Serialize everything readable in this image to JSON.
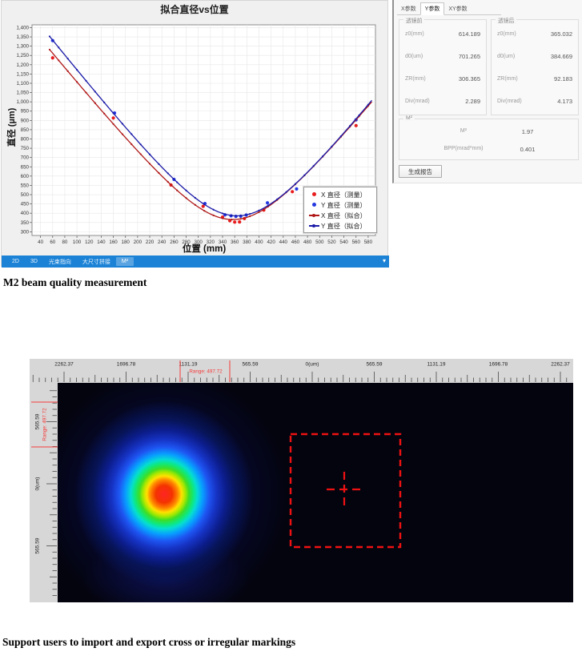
{
  "chart_window": {
    "title": "拟合直径vs位置",
    "footer_tabs": {
      "items": [
        "2D",
        "3D",
        "光束指向",
        "大尺寸拼接",
        "M²"
      ],
      "active": "M²",
      "collapse_arrow": "▾"
    }
  },
  "chart_data": {
    "type": "scatter+line",
    "title": "拟合直径vs位置",
    "xlabel": "位置 (mm)",
    "ylabel": "直径 (µm)",
    "xlim": [
      26,
      592
    ],
    "ylim": [
      280,
      1415
    ],
    "xticks": [
      40,
      60,
      80,
      100,
      120,
      140,
      160,
      180,
      200,
      220,
      240,
      260,
      280,
      300,
      320,
      340,
      360,
      380,
      400,
      420,
      440,
      460,
      480,
      500,
      520,
      540,
      560,
      580
    ],
    "yticks": [
      300,
      350,
      400,
      450,
      500,
      550,
      600,
      650,
      700,
      750,
      800,
      850,
      900,
      950,
      1000,
      1050,
      1100,
      1150,
      1200,
      1250,
      1300,
      1350,
      1400
    ],
    "grid": true,
    "legend_position": "right-center",
    "series": [
      {
        "name": "X 直径（测量）",
        "type": "scatter",
        "color": "#e81c1c",
        "points": [
          [
            60,
            1237
          ],
          [
            160,
            913
          ],
          [
            255,
            552
          ],
          [
            308,
            437
          ],
          [
            340,
            379
          ],
          [
            352,
            360
          ],
          [
            360,
            352
          ],
          [
            368,
            353
          ],
          [
            376,
            371
          ],
          [
            408,
            417
          ],
          [
            455,
            516
          ],
          [
            560,
            872
          ]
        ]
      },
      {
        "name": "Y 直径（测量）",
        "type": "scatter",
        "color": "#2438e0",
        "points": [
          [
            60,
            1330
          ],
          [
            162,
            940
          ],
          [
            260,
            582
          ],
          [
            311,
            452
          ],
          [
            344,
            391
          ],
          [
            354,
            386
          ],
          [
            362,
            383
          ],
          [
            370,
            384
          ],
          [
            379,
            390
          ],
          [
            414,
            456
          ],
          [
            462,
            531
          ],
          [
            560,
            903
          ]
        ]
      },
      {
        "name": "X 直径（拟合）",
        "type": "line",
        "color": "#b01818",
        "fit": {
          "z0": 357,
          "d0": 366,
          "zR": 90
        }
      },
      {
        "name": "Y 直径（拟合）",
        "type": "line",
        "color": "#1a1aa8",
        "fit": {
          "z0": 364,
          "d0": 386,
          "zR": 92
        }
      }
    ]
  },
  "params_panel": {
    "tabs": [
      "X参数",
      "Y参数",
      "XY参数"
    ],
    "active_tab": "Y参数",
    "groups": [
      {
        "title": "透镜前",
        "rows": [
          {
            "label": "z0(mm)",
            "value": "614.189"
          },
          {
            "label": "d0(um)",
            "value": "701.265"
          },
          {
            "label": "ZR(mm)",
            "value": "306.365"
          },
          {
            "label": "Div(mrad)",
            "value": "2.289"
          }
        ]
      },
      {
        "title": "透镜后",
        "rows": [
          {
            "label": "z0(mm)",
            "value": "365.032"
          },
          {
            "label": "d0(um)",
            "value": "384.669"
          },
          {
            "label": "ZR(mm)",
            "value": "92.183"
          },
          {
            "label": "Div(mrad)",
            "value": "4.173"
          }
        ]
      }
    ],
    "m2_group": {
      "title": "M²",
      "rows": [
        {
          "label": "M²",
          "value": "1.97"
        },
        {
          "label": "BPP(mrad*mm)",
          "value": "0.401"
        }
      ]
    },
    "report_button": "生成报告"
  },
  "captions": {
    "m2": "M2 beam quality measurement",
    "markings": "Support users to import and export cross or irregular markings"
  },
  "beam_view": {
    "top_ruler_labels": [
      "2262.37",
      "1696.78",
      "1131.19",
      "565.59",
      "0(um)",
      "565.59",
      "1131.19",
      "1696.78",
      "2262.37"
    ],
    "left_ruler_labels": [
      "565.59",
      "0(um)",
      "565.59"
    ],
    "range_label": "Range: 497.72",
    "range_color": "#f53b3b",
    "marking_color": "#ee1111",
    "background_color": "#04040f"
  }
}
